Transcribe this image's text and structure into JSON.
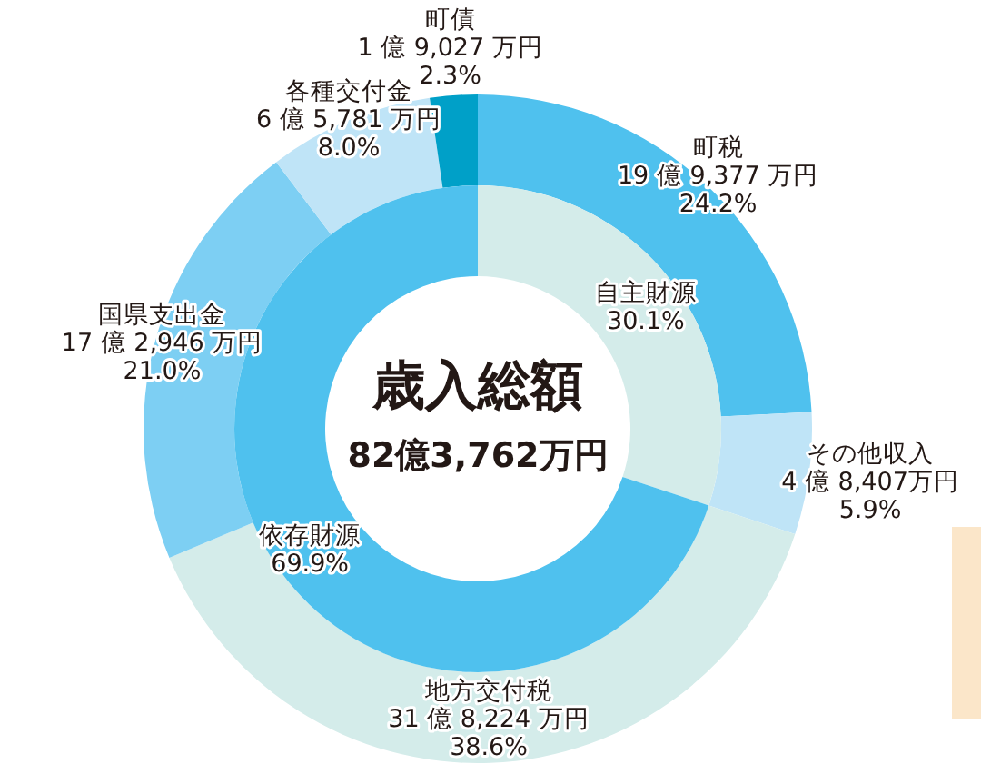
{
  "chart_data": [
    {
      "type": "donut",
      "categories": [
        "町税",
        "その他収入",
        "地方交付税",
        "国県支出金",
        "各種交付金",
        "町債"
      ],
      "values": [
        24.2,
        5.9,
        38.6,
        21.0,
        8.0,
        2.3
      ],
      "colors": [
        "#4fc1ee",
        "#bfe4f7",
        "#d4ecea",
        "#7dcff3",
        "#bfe4f7",
        "#00a0c8"
      ],
      "value_labels": [
        "19 億 9,377 万円\n24.2%",
        "4 億 8,407万円\n5.9%",
        "31 億 8,224 万円\n38.6%",
        "17 億 2,946 万円\n21.0%",
        "6 億 5,781 万円\n8.0%",
        "1 億 9,027 万円\n2.3%"
      ]
    },
    {
      "type": "donut",
      "title": "歳入総額",
      "subtitle": "82億3,762万円",
      "categories": [
        "自主財源",
        "依存財源"
      ],
      "values": [
        30.1,
        69.9
      ],
      "colors": [
        "#d4ecea",
        "#4fc1ee"
      ],
      "value_labels": [
        "30.1%",
        "69.9%"
      ]
    }
  ]
}
